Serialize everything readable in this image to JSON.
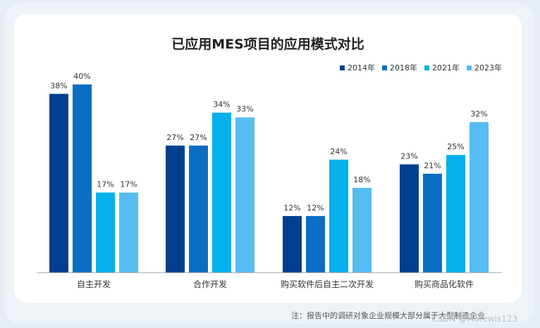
{
  "chart_data": {
    "type": "bar",
    "title": "已应用MES项目的应用模式对比",
    "categories": [
      "自主开发",
      "合作开发",
      "购买软件后自主二次开发",
      "购买商品化软件"
    ],
    "series": [
      {
        "name": "2014年",
        "color": "#003f8f",
        "values": [
          38,
          27,
          12,
          23
        ],
        "labels": [
          "38%",
          "27%",
          "12%",
          "23%"
        ]
      },
      {
        "name": "2018年",
        "color": "#0a6fc2",
        "values": [
          40,
          27,
          12,
          21
        ],
        "labels": [
          "40%",
          "27%",
          "12%",
          "21%"
        ]
      },
      {
        "name": "2021年",
        "color": "#05b0ec",
        "values": [
          17,
          34,
          24,
          25
        ],
        "labels": [
          "17%",
          "34%",
          "24%",
          "25%"
        ]
      },
      {
        "name": "2023年",
        "color": "#56bdf3",
        "values": [
          17,
          33,
          18,
          32
        ],
        "labels": [
          "17%",
          "33%",
          "18%",
          "32%"
        ]
      }
    ],
    "ylim": [
      0,
      40
    ],
    "legend": "top-right",
    "grid": false
  },
  "footer": {
    "note": "注：报告中的调研对象企业规模大部分属于大型制造企业",
    "watermark": "CSDN @Morewis123"
  }
}
